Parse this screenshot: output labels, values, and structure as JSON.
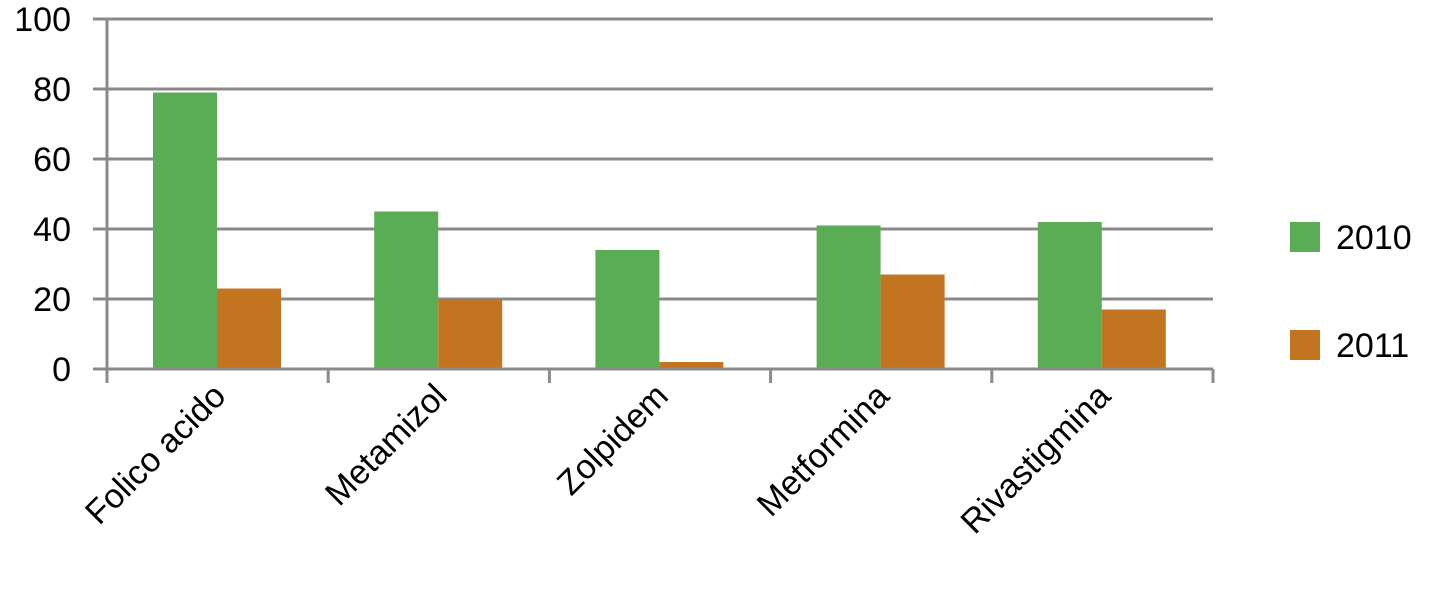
{
  "chart_data": {
    "type": "bar",
    "title": "",
    "xlabel": "",
    "ylabel": "",
    "categories": [
      "Folico acido",
      "Metamizol",
      "Zolpidem",
      "Metformina",
      "Rivastigmina"
    ],
    "series": [
      {
        "name": "2010",
        "color": "#5aad54",
        "values": [
          79,
          45,
          34,
          41,
          42
        ]
      },
      {
        "name": "2011",
        "color": "#c37421",
        "values": [
          23,
          20,
          2,
          27,
          17
        ]
      }
    ],
    "ylim": [
      0,
      100
    ],
    "yticks": [
      0,
      20,
      40,
      60,
      80,
      100
    ],
    "grid": true,
    "legend": "right",
    "gridColor": "#8a8a8a"
  }
}
